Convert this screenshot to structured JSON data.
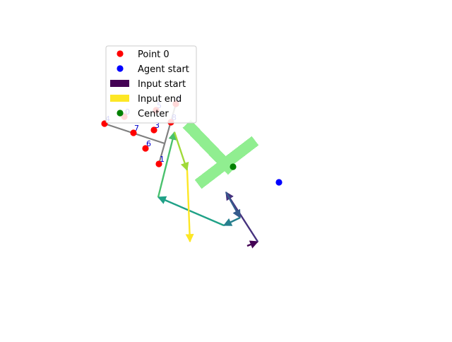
{
  "chart_data": {
    "type": "scatter",
    "legend": {
      "placement": "upper-left",
      "entries": [
        {
          "key": "point0",
          "label": "Point 0",
          "marker": "dot",
          "color": "#ff0000"
        },
        {
          "key": "agent_start",
          "label": "Agent start",
          "marker": "dot",
          "color": "#0000ff"
        },
        {
          "key": "input_start",
          "label": "Input start",
          "marker": "bar",
          "color": "#440154"
        },
        {
          "key": "input_end",
          "label": "Input end",
          "marker": "bar",
          "color": "#fde725"
        },
        {
          "key": "center",
          "label": "Center",
          "marker": "dot",
          "color": "#008000"
        }
      ]
    },
    "points": [
      {
        "label": "0",
        "x": 176,
        "y": 315
      },
      {
        "label": "1",
        "x": 225,
        "y": 248
      },
      {
        "label": "2",
        "x": 249,
        "y": 333
      },
      {
        "label": "3",
        "x": 218,
        "y": 296
      },
      {
        "label": "4",
        "x": 148,
        "y": 305
      },
      {
        "label": "5",
        "x": 221,
        "y": 324
      },
      {
        "label": "6",
        "x": 206,
        "y": 270
      },
      {
        "label": "7",
        "x": 189,
        "y": 292
      },
      {
        "label": "8",
        "x": 242,
        "y": 307
      }
    ],
    "skeleton_segments": [
      {
        "x1": 148,
        "y1": 305,
        "x2": 233,
        "y2": 277
      },
      {
        "x1": 225,
        "y1": 248,
        "x2": 249,
        "y2": 333
      }
    ],
    "agent_start": {
      "x": 395,
      "y": 222
    },
    "center": {
      "x": 330,
      "y": 244
    },
    "t_shape": {
      "color": "#90ee90",
      "bars": [
        {
          "x1": 287,
          "y1": 224,
          "x2": 355,
          "y2": 276
        },
        {
          "x1": 323,
          "y1": 244,
          "x2": 270,
          "y2": 299
        }
      ],
      "bar_width": 16
    },
    "input_path": {
      "points": [
        {
          "x": 350,
          "y": 132
        },
        {
          "x": 365,
          "y": 138
        },
        {
          "x": 320,
          "y": 208
        },
        {
          "x": 340,
          "y": 172
        },
        {
          "x": 317,
          "y": 161
        },
        {
          "x": 224,
          "y": 201
        },
        {
          "x": 247,
          "y": 293
        },
        {
          "x": 265,
          "y": 239
        },
        {
          "x": 269,
          "y": 138
        }
      ],
      "colors": [
        "#440154",
        "#46327e",
        "#365c8d",
        "#277f8e",
        "#1fa187",
        "#4ac16d",
        "#a0da39",
        "#fde725"
      ]
    },
    "xlim": [
      0,
      640
    ],
    "ylim": [
      480,
      0
    ],
    "grid": false,
    "axes_visible": false
  }
}
